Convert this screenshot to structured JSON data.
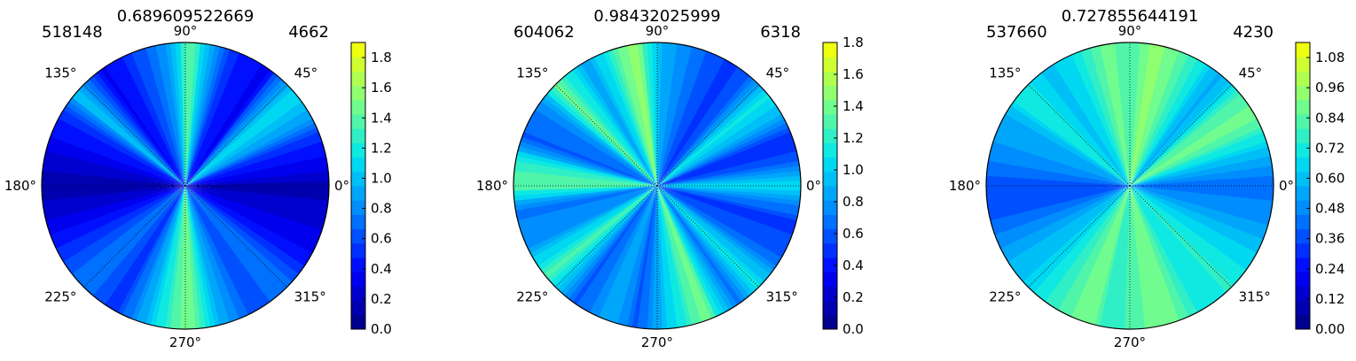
{
  "colormap": [
    "#00007f",
    "#0000ff",
    "#0080ff",
    "#00e5f0",
    "#80ff80",
    "#ffff00"
  ],
  "chart_data": [
    {
      "type": "heatmap",
      "subtype": "polar-contour",
      "title": "0.689609522669",
      "left_label": "518148",
      "right_label": "4662",
      "theta_labels": [
        "0°",
        "45°",
        "90°",
        "135°",
        "180°",
        "225°",
        "270°",
        "315°"
      ],
      "colorbar": {
        "min": 0.0,
        "max": 1.9,
        "ticks": [
          0.0,
          0.2,
          0.4,
          0.6,
          0.8,
          1.0,
          1.2,
          1.4,
          1.6,
          1.8
        ],
        "tick_labels": [
          "0.0",
          "0.2",
          "0.4",
          "0.6",
          "0.8",
          "1.0",
          "1.2",
          "1.4",
          "1.6",
          "1.8"
        ]
      },
      "angular_profile": [
        {
          "angle": 0,
          "value": 0.15
        },
        {
          "angle": 10,
          "value": 0.35
        },
        {
          "angle": 20,
          "value": 0.5
        },
        {
          "angle": 30,
          "value": 0.9
        },
        {
          "angle": 40,
          "value": 1.15
        },
        {
          "angle": 45,
          "value": 0.9
        },
        {
          "angle": 55,
          "value": 0.35
        },
        {
          "angle": 70,
          "value": 0.5
        },
        {
          "angle": 80,
          "value": 0.9
        },
        {
          "angle": 88,
          "value": 1.45
        },
        {
          "angle": 95,
          "value": 0.95
        },
        {
          "angle": 105,
          "value": 0.7
        },
        {
          "angle": 115,
          "value": 0.5
        },
        {
          "angle": 125,
          "value": 0.35
        },
        {
          "angle": 140,
          "value": 1.0
        },
        {
          "angle": 150,
          "value": 0.5
        },
        {
          "angle": 165,
          "value": 0.3
        },
        {
          "angle": 180,
          "value": 0.1
        },
        {
          "angle": 195,
          "value": 0.3
        },
        {
          "angle": 210,
          "value": 0.55
        },
        {
          "angle": 225,
          "value": 0.75
        },
        {
          "angle": 240,
          "value": 0.5
        },
        {
          "angle": 255,
          "value": 1.0
        },
        {
          "angle": 265,
          "value": 1.35
        },
        {
          "angle": 272,
          "value": 1.5
        },
        {
          "angle": 285,
          "value": 0.9
        },
        {
          "angle": 300,
          "value": 0.6
        },
        {
          "angle": 315,
          "value": 0.75
        },
        {
          "angle": 330,
          "value": 0.4
        },
        {
          "angle": 345,
          "value": 0.25
        }
      ]
    },
    {
      "type": "heatmap",
      "subtype": "polar-contour",
      "title": "0.98432025999",
      "left_label": "604062",
      "right_label": "6318",
      "theta_labels": [
        "0°",
        "45°",
        "90°",
        "135°",
        "180°",
        "225°",
        "270°",
        "315°"
      ],
      "colorbar": {
        "min": 0.0,
        "max": 1.8,
        "ticks": [
          0.0,
          0.2,
          0.4,
          0.6,
          0.8,
          1.0,
          1.2,
          1.4,
          1.6,
          1.8
        ],
        "tick_labels": [
          "0.0",
          "0.2",
          "0.4",
          "0.6",
          "0.8",
          "1.0",
          "1.2",
          "1.4",
          "1.6",
          "1.8"
        ]
      },
      "angular_profile": [
        {
          "angle": 0,
          "value": 1.1
        },
        {
          "angle": 10,
          "value": 0.6
        },
        {
          "angle": 20,
          "value": 0.45
        },
        {
          "angle": 30,
          "value": 0.9
        },
        {
          "angle": 40,
          "value": 1.1
        },
        {
          "angle": 50,
          "value": 0.6
        },
        {
          "angle": 60,
          "value": 0.5
        },
        {
          "angle": 75,
          "value": 0.7
        },
        {
          "angle": 90,
          "value": 0.95
        },
        {
          "angle": 100,
          "value": 1.55
        },
        {
          "angle": 110,
          "value": 1.15
        },
        {
          "angle": 120,
          "value": 0.85
        },
        {
          "angle": 135,
          "value": 1.35
        },
        {
          "angle": 145,
          "value": 0.75
        },
        {
          "angle": 160,
          "value": 0.6
        },
        {
          "angle": 170,
          "value": 1.2
        },
        {
          "angle": 180,
          "value": 1.35
        },
        {
          "angle": 190,
          "value": 0.7
        },
        {
          "angle": 205,
          "value": 0.8
        },
        {
          "angle": 220,
          "value": 1.3
        },
        {
          "angle": 235,
          "value": 0.6
        },
        {
          "angle": 250,
          "value": 0.9
        },
        {
          "angle": 262,
          "value": 0.6
        },
        {
          "angle": 275,
          "value": 1.0
        },
        {
          "angle": 290,
          "value": 1.4
        },
        {
          "angle": 305,
          "value": 0.7
        },
        {
          "angle": 315,
          "value": 1.1
        },
        {
          "angle": 330,
          "value": 0.6
        },
        {
          "angle": 345,
          "value": 0.5
        },
        {
          "angle": 355,
          "value": 0.85
        }
      ]
    },
    {
      "type": "heatmap",
      "subtype": "polar-contour",
      "title": "0.727855644191",
      "left_label": "537660",
      "right_label": "4230",
      "theta_labels": [
        "0°",
        "45°",
        "90°",
        "135°",
        "180°",
        "225°",
        "270°",
        "315°"
      ],
      "colorbar": {
        "min": 0.0,
        "max": 1.14,
        "ticks": [
          0.0,
          0.12,
          0.24,
          0.36,
          0.48,
          0.6,
          0.72,
          0.84,
          0.96,
          1.08
        ],
        "tick_labels": [
          "0.00",
          "0.12",
          "0.24",
          "0.36",
          "0.48",
          "0.60",
          "0.72",
          "0.84",
          "0.96",
          "1.08"
        ]
      },
      "angular_profile": [
        {
          "angle": 0,
          "value": 0.4
        },
        {
          "angle": 10,
          "value": 0.55
        },
        {
          "angle": 20,
          "value": 0.7
        },
        {
          "angle": 30,
          "value": 0.9
        },
        {
          "angle": 40,
          "value": 0.8
        },
        {
          "angle": 50,
          "value": 0.55
        },
        {
          "angle": 60,
          "value": 0.7
        },
        {
          "angle": 70,
          "value": 0.85
        },
        {
          "angle": 80,
          "value": 0.95
        },
        {
          "angle": 90,
          "value": 0.8
        },
        {
          "angle": 100,
          "value": 0.9
        },
        {
          "angle": 112,
          "value": 0.7
        },
        {
          "angle": 125,
          "value": 0.6
        },
        {
          "angle": 140,
          "value": 0.75
        },
        {
          "angle": 150,
          "value": 0.55
        },
        {
          "angle": 165,
          "value": 0.5
        },
        {
          "angle": 180,
          "value": 0.35
        },
        {
          "angle": 195,
          "value": 0.4
        },
        {
          "angle": 210,
          "value": 0.55
        },
        {
          "angle": 225,
          "value": 0.65
        },
        {
          "angle": 240,
          "value": 0.8
        },
        {
          "angle": 252,
          "value": 0.9
        },
        {
          "angle": 262,
          "value": 0.75
        },
        {
          "angle": 275,
          "value": 0.85
        },
        {
          "angle": 288,
          "value": 0.9
        },
        {
          "angle": 300,
          "value": 0.7
        },
        {
          "angle": 315,
          "value": 0.75
        },
        {
          "angle": 330,
          "value": 0.65
        },
        {
          "angle": 345,
          "value": 0.5
        },
        {
          "angle": 355,
          "value": 0.45
        }
      ]
    }
  ]
}
